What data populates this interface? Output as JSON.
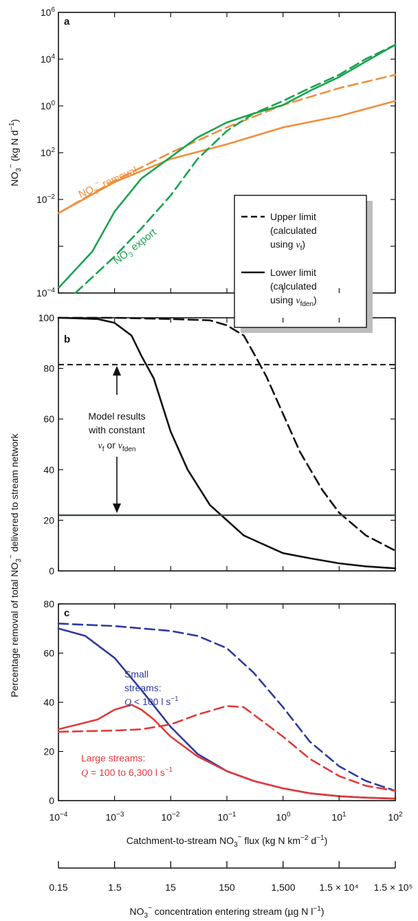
{
  "figure": {
    "ylabel_shared": "Percentage removal of total NO3⁻ delivered to stream network",
    "xlabel_main": "Catchment-to-stream NO3⁻ flux (kg N km⁻² d⁻¹)",
    "xlabel_conc": "NO3⁻ concentration entering stream (µg N l⁻¹)",
    "conc_ticks": [
      "0.15",
      "1.5",
      "15",
      "150",
      "1,500",
      "1.5 × 10⁴",
      "1.5 × 10⁵"
    ]
  },
  "legend": {
    "upper": [
      "Upper limit",
      "(calculated",
      "using vf)"
    ],
    "lower": [
      "Lower limit",
      "(calculated",
      "using vfden)"
    ]
  },
  "colors": {
    "orange": "#ef8f3c",
    "green": "#19a34f",
    "blue": "#2e3a9e",
    "red": "#e23a3a",
    "black": "#111111",
    "grey": "#3f4a4a"
  },
  "chart_data": [
    {
      "panel": "a",
      "type": "line",
      "x_scale": "log",
      "y_scale": "log",
      "xlim": [
        0.0001,
        100
      ],
      "ylim": [
        0.0001,
        1000000
      ],
      "ylabel": "NO3⁻ (kg N d⁻¹)",
      "yticks": [
        "10⁻⁴",
        "10⁻²",
        "10⁰",
        "10²",
        "10⁴",
        "10⁶"
      ],
      "annotations": [
        "NO3⁻ removal",
        "NO3 export"
      ],
      "series": [
        {
          "name": "NO3⁻ removal",
          "color": "orange",
          "dash": false,
          "x": [
            0.0001,
            0.001,
            0.01,
            0.1,
            1,
            10,
            100
          ],
          "y": [
            0.07,
            0.9,
            6,
            20,
            80,
            200,
            700
          ]
        },
        {
          "name": "NO3⁻ removal",
          "color": "orange",
          "dash": true,
          "x": [
            0.0001,
            0.001,
            0.01,
            0.1,
            1,
            10,
            100
          ],
          "y": [
            0.07,
            1.0,
            10,
            80,
            500,
            2000,
            6000
          ]
        },
        {
          "name": "NO3 export",
          "color": "green",
          "dash": false,
          "x": [
            0.0001,
            0.0004,
            0.001,
            0.003,
            0.01,
            0.03,
            0.1,
            0.3,
            1,
            3,
            10,
            30,
            100
          ],
          "y": [
            0.00015,
            0.003,
            0.08,
            1.2,
            7,
            35,
            120,
            250,
            500,
            1600,
            5000,
            18000,
            70000
          ]
        },
        {
          "name": "NO3 export",
          "color": "green",
          "dash": true,
          "x": [
            0.0002,
            0.001,
            0.003,
            0.01,
            0.03,
            0.1,
            0.3,
            1,
            3,
            10,
            30,
            100
          ],
          "y": [
            0.0001,
            0.002,
            0.02,
            0.3,
            6,
            60,
            250,
            700,
            2000,
            6000,
            22000,
            70000
          ]
        }
      ]
    },
    {
      "panel": "b",
      "type": "line",
      "x_scale": "log",
      "xlim": [
        0.0001,
        100
      ],
      "ylim": [
        0,
        100
      ],
      "yticks": [
        0,
        20,
        40,
        60,
        80,
        100
      ],
      "annotation": [
        "Model results",
        "with constant",
        "vf or vfden"
      ],
      "series": [
        {
          "color": "black",
          "dash": true,
          "x": [
            0.0001,
            0.001,
            0.01,
            0.05,
            0.1,
            0.2,
            0.3,
            0.5,
            1,
            2,
            5,
            10,
            30,
            100
          ],
          "y": [
            100,
            100,
            99.5,
            99,
            97,
            93,
            86,
            77,
            62,
            47,
            32,
            23,
            14,
            8
          ]
        },
        {
          "color": "black",
          "dash": false,
          "x": [
            0.0001,
            0.0005,
            0.001,
            0.002,
            0.003,
            0.005,
            0.01,
            0.02,
            0.05,
            0.1,
            0.2,
            0.5,
            1,
            3,
            10,
            30,
            100
          ],
          "y": [
            100,
            99.5,
            98,
            93,
            85,
            76,
            55,
            40,
            26,
            20,
            14,
            10,
            7,
            5,
            3,
            1.8,
            1
          ]
        },
        {
          "color": "black",
          "dash": true,
          "constant": 81.5
        },
        {
          "color": "grey",
          "dash": false,
          "constant": 22
        }
      ]
    },
    {
      "panel": "c",
      "type": "line",
      "x_scale": "log",
      "xlim": [
        0.0001,
        100
      ],
      "ylim": [
        0,
        80
      ],
      "yticks": [
        0,
        20,
        40,
        60,
        80
      ],
      "xticks": [
        "10⁻⁴",
        "10⁻³",
        "10⁻²",
        "10⁻¹",
        "10⁰",
        "10¹",
        "10²"
      ],
      "annotations": [
        {
          "lines": [
            "Small",
            "streams:",
            "Q < 100 l s⁻¹"
          ],
          "color": "blue"
        },
        {
          "lines": [
            "Large streams:",
            "Q = 100 to 6,300 l s⁻¹"
          ],
          "color": "red"
        }
      ],
      "series": [
        {
          "name": "Small streams",
          "color": "blue",
          "dash": false,
          "x": [
            0.0001,
            0.0003,
            0.001,
            0.003,
            0.01,
            0.03,
            0.1,
            0.3,
            1,
            3,
            10,
            30,
            100
          ],
          "y": [
            70,
            67,
            58,
            45,
            30,
            19,
            12,
            8,
            5,
            3,
            1.8,
            1.2,
            0.8
          ]
        },
        {
          "name": "Small streams",
          "color": "blue",
          "dash": true,
          "x": [
            0.0001,
            0.001,
            0.01,
            0.03,
            0.1,
            0.3,
            1,
            3,
            10,
            30,
            100
          ],
          "y": [
            72,
            71,
            69,
            67,
            62,
            52,
            38,
            24,
            14,
            8,
            4
          ]
        },
        {
          "name": "Large streams",
          "color": "red",
          "dash": false,
          "x": [
            0.0001,
            0.0005,
            0.001,
            0.002,
            0.003,
            0.005,
            0.01,
            0.03,
            0.1,
            0.3,
            1,
            3,
            10,
            30,
            100
          ],
          "y": [
            29,
            33,
            37,
            39,
            37,
            33,
            26,
            18,
            12,
            8,
            5,
            3,
            1.8,
            1.2,
            0.8
          ]
        },
        {
          "name": "Large streams",
          "color": "red",
          "dash": true,
          "x": [
            0.0001,
            0.001,
            0.003,
            0.01,
            0.03,
            0.1,
            0.2,
            0.3,
            1,
            3,
            10,
            30,
            100
          ],
          "y": [
            28,
            28.5,
            29,
            31,
            35,
            38.5,
            38,
            35,
            26,
            17,
            10,
            6,
            4
          ]
        }
      ]
    }
  ]
}
